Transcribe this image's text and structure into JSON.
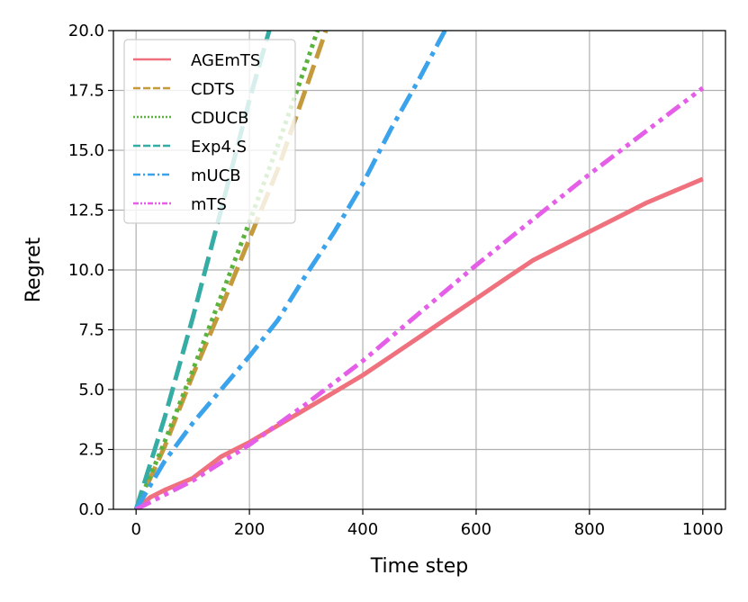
{
  "chart_data": {
    "type": "line",
    "title": "",
    "xlabel": "Time step",
    "ylabel": "Regret",
    "xlim": [
      -40,
      1040
    ],
    "ylim": [
      0,
      20
    ],
    "xticks": [
      0,
      200,
      400,
      600,
      800,
      1000
    ],
    "yticks": [
      0.0,
      2.5,
      5.0,
      7.5,
      10.0,
      12.5,
      15.0,
      17.5,
      20.0
    ],
    "xtick_labels": [
      "0",
      "200",
      "400",
      "600",
      "800",
      "1000"
    ],
    "ytick_labels": [
      "0.0",
      "2.5",
      "5.0",
      "7.5",
      "10.0",
      "12.5",
      "15.0",
      "17.5",
      "20.0"
    ],
    "grid": true,
    "legend_position": "upper-left",
    "series": [
      {
        "name": "AGEmTS",
        "color": "#f0717e",
        "style": "solid",
        "x": [
          0,
          25,
          50,
          100,
          150,
          200,
          250,
          300,
          350,
          400,
          450,
          500,
          550,
          600,
          650,
          700,
          750,
          800,
          850,
          900,
          950,
          1000
        ],
        "y": [
          0,
          0.5,
          0.8,
          1.3,
          2.2,
          2.8,
          3.5,
          4.2,
          4.9,
          5.6,
          6.4,
          7.2,
          8.0,
          8.8,
          9.6,
          10.4,
          11.0,
          11.6,
          12.2,
          12.8,
          13.3,
          13.8
        ]
      },
      {
        "name": "CDTS",
        "color": "#c49a3c",
        "style": "dashed",
        "x": [
          0,
          50,
          100,
          150,
          200,
          250,
          300,
          335
        ],
        "y": [
          0,
          2.6,
          5.6,
          8.4,
          11.3,
          14.2,
          17.6,
          20.0
        ]
      },
      {
        "name": "CDUCB",
        "color": "#5bb33d",
        "style": "dotted",
        "x": [
          0,
          50,
          100,
          150,
          200,
          250,
          300,
          320
        ],
        "y": [
          0,
          2.8,
          5.8,
          8.9,
          12.0,
          15.2,
          18.6,
          20.0
        ]
      },
      {
        "name": "Exp4.S",
        "color": "#36ada4",
        "style": "dashed",
        "x": [
          0,
          50,
          100,
          150,
          200,
          235
        ],
        "y": [
          0,
          3.8,
          8.0,
          12.5,
          17.1,
          20.0
        ]
      },
      {
        "name": "mUCB",
        "color": "#3ba3ec",
        "style": "dashdot",
        "x": [
          0,
          50,
          100,
          150,
          200,
          250,
          300,
          350,
          400,
          450,
          500,
          545
        ],
        "y": [
          0,
          2.0,
          3.6,
          5.0,
          6.4,
          7.9,
          9.8,
          11.6,
          13.6,
          15.9,
          18.0,
          20.0
        ]
      },
      {
        "name": "mTS",
        "color": "#e55ee8",
        "style": "dashdotdot",
        "x": [
          0,
          100,
          200,
          300,
          400,
          500,
          600,
          700,
          800,
          900,
          1000
        ],
        "y": [
          0,
          1.2,
          2.7,
          4.4,
          6.2,
          8.2,
          10.2,
          12.1,
          14.0,
          15.8,
          17.6
        ]
      }
    ]
  }
}
